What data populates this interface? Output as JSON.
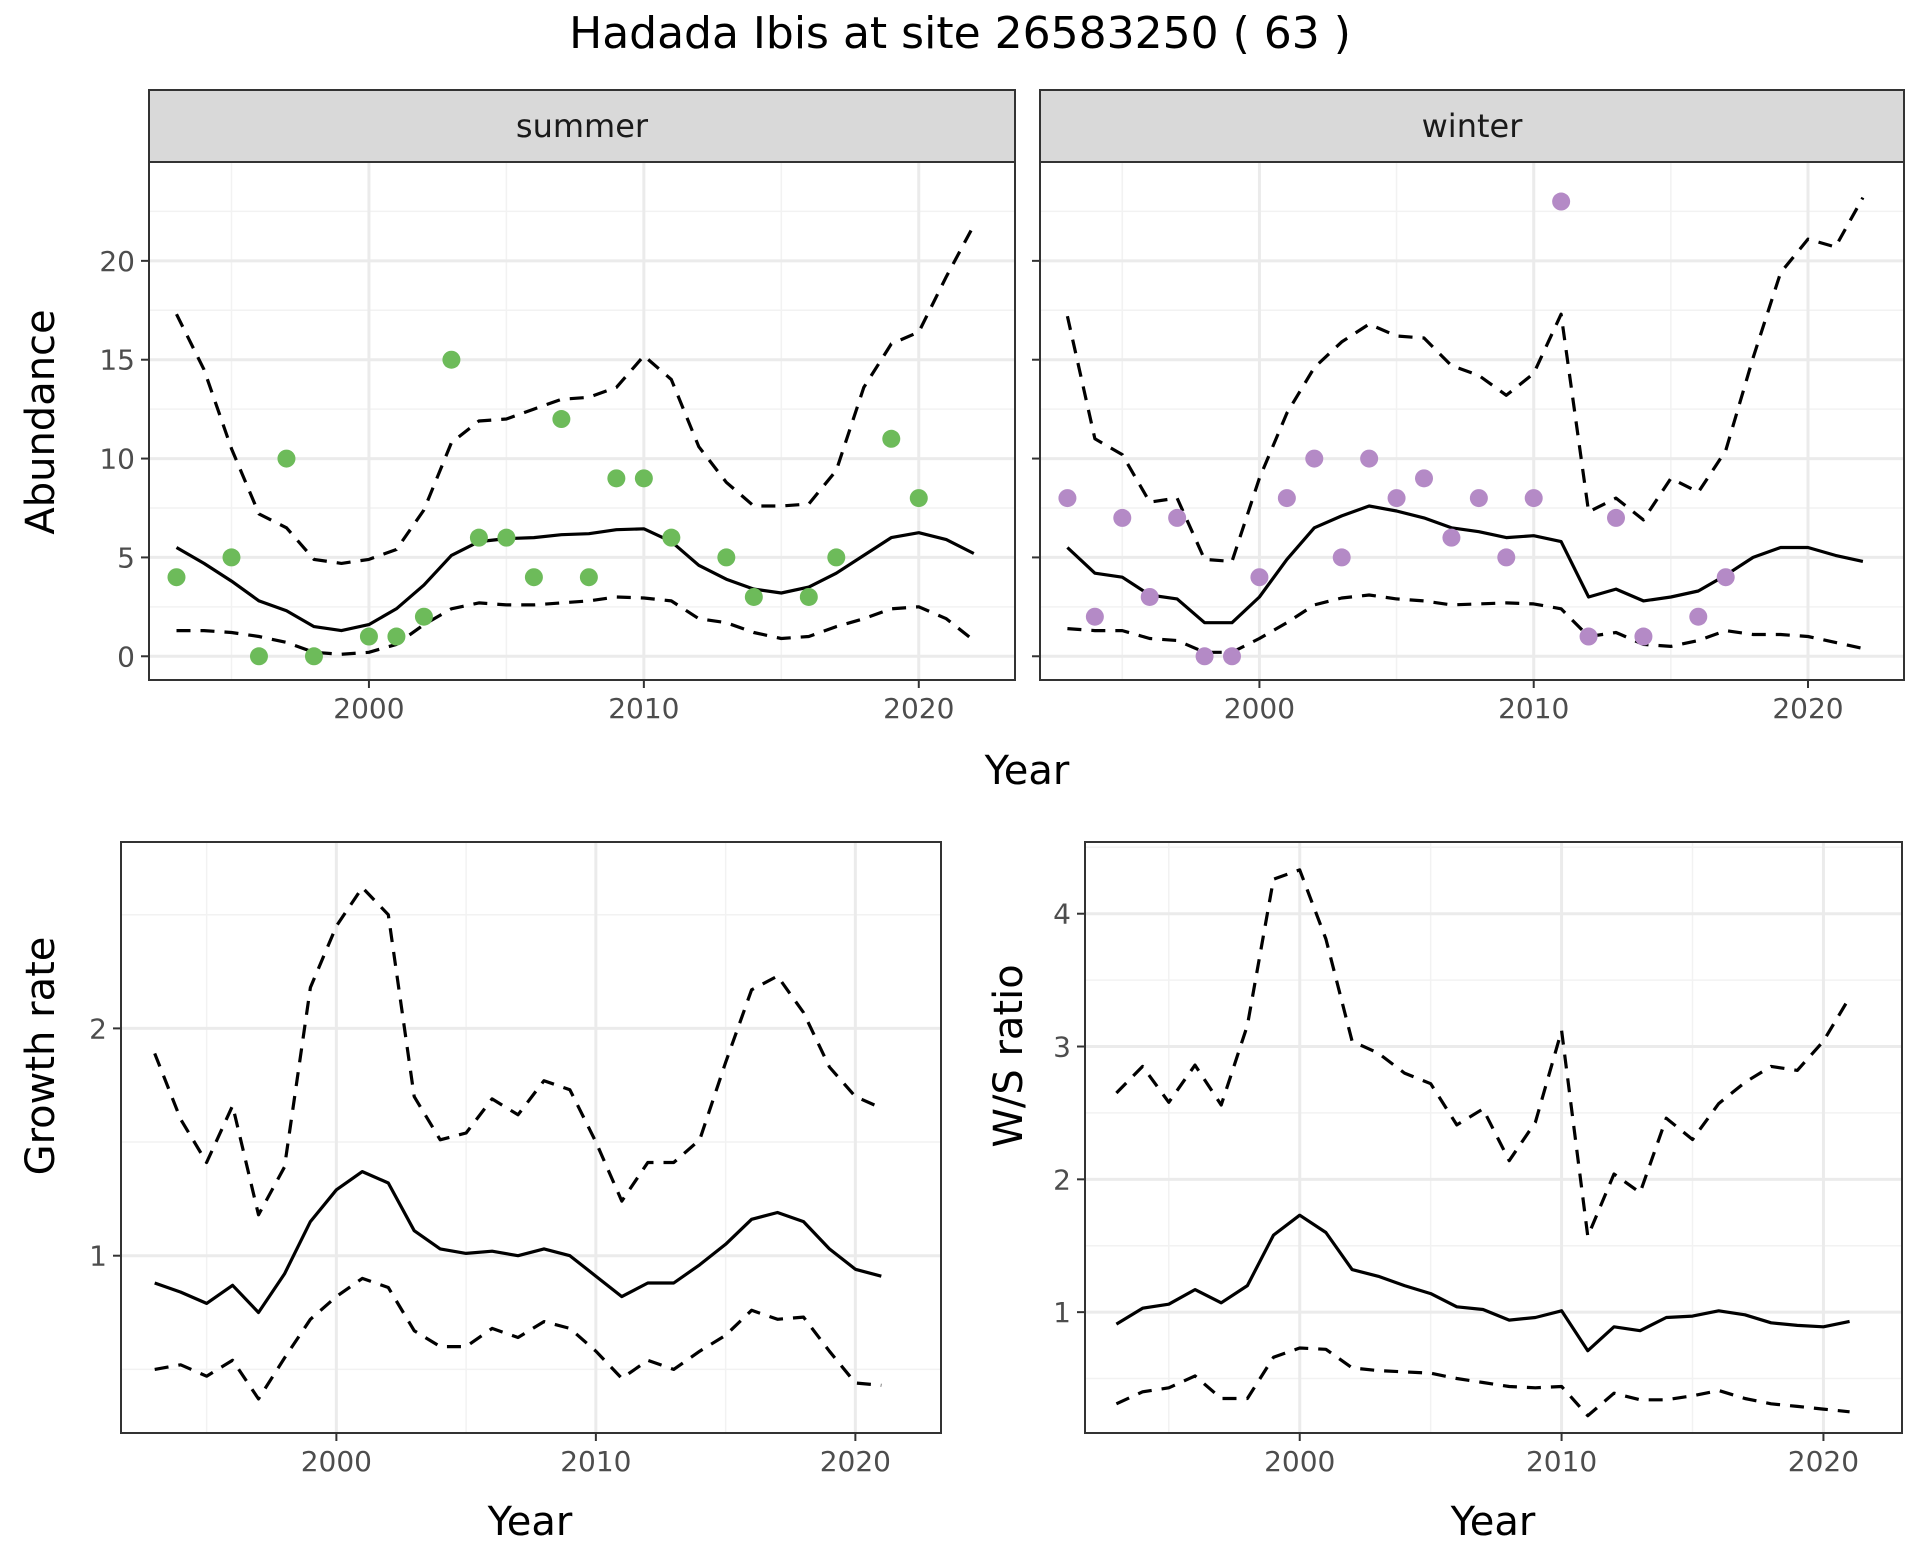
{
  "title": "Hadada Ibis at site 26583250 ( 63 )",
  "colors": {
    "summer_points": "#6dbb5a",
    "winter_points": "#b48ac6",
    "line": "#000000",
    "grid_major": "#ebebeb",
    "strip_fill": "#d9d9d9",
    "panel_border": "#333333"
  },
  "chart_data": [
    {
      "type": "line",
      "panel": "summer",
      "xlabel": "Year",
      "ylabel": "Abundance",
      "xlim": [
        1992,
        2023.5
      ],
      "ylim": [
        -1.2,
        25
      ],
      "xticks": [
        2000,
        2010,
        2020
      ],
      "yticks": [
        0,
        5,
        10,
        15,
        20
      ],
      "points": {
        "x": [
          1993,
          1995,
          1996,
          1997,
          1998,
          2000,
          2001,
          2002,
          2003,
          2004,
          2005,
          2006,
          2007,
          2008,
          2009,
          2010,
          2011,
          2013,
          2014,
          2016,
          2017,
          2019,
          2020
        ],
        "y": [
          4,
          5,
          0,
          10,
          0,
          1,
          1,
          2,
          15,
          6,
          6,
          4,
          12,
          4,
          9,
          9,
          6,
          5,
          3,
          3,
          5,
          11,
          8
        ]
      },
      "estimate": {
        "x": [
          1993,
          1994,
          1995,
          1996,
          1997,
          1998,
          1999,
          2000,
          2001,
          2002,
          2003,
          2004,
          2005,
          2006,
          2007,
          2008,
          2009,
          2010,
          2011,
          2012,
          2013,
          2014,
          2015,
          2016,
          2017,
          2018,
          2019,
          2020,
          2021,
          2022
        ],
        "y": [
          5.5,
          4.7,
          3.8,
          2.8,
          2.3,
          1.5,
          1.3,
          1.6,
          2.4,
          3.6,
          5.1,
          5.8,
          5.95,
          6.0,
          6.15,
          6.2,
          6.4,
          6.45,
          5.8,
          4.6,
          3.9,
          3.4,
          3.2,
          3.5,
          4.2,
          5.1,
          6.0,
          6.25,
          5.9,
          5.2
        ]
      },
      "upper": {
        "x": [
          1993,
          1994,
          1995,
          1996,
          1997,
          1998,
          1999,
          2000,
          2001,
          2002,
          2003,
          2004,
          2005,
          2006,
          2007,
          2008,
          2009,
          2010,
          2011,
          2012,
          2013,
          2014,
          2015,
          2016,
          2017,
          2018,
          2019,
          2020,
          2021,
          2022
        ],
        "y": [
          17.3,
          14.5,
          10.5,
          7.2,
          6.5,
          4.9,
          4.7,
          4.9,
          5.4,
          7.4,
          10.8,
          11.9,
          12.0,
          12.5,
          13.0,
          13.1,
          13.6,
          15.2,
          14.0,
          10.6,
          8.8,
          7.6,
          7.6,
          7.7,
          9.4,
          13.6,
          15.8,
          16.4,
          19.2,
          21.8
        ]
      },
      "lower": {
        "x": [
          1993,
          1994,
          1995,
          1996,
          1997,
          1998,
          1999,
          2000,
          2001,
          2002,
          2003,
          2004,
          2005,
          2006,
          2007,
          2008,
          2009,
          2010,
          2011,
          2012,
          2013,
          2014,
          2015,
          2016,
          2017,
          2018,
          2019,
          2020,
          2021,
          2022
        ],
        "y": [
          1.3,
          1.3,
          1.2,
          1.0,
          0.7,
          0.2,
          0.1,
          0.2,
          0.6,
          1.6,
          2.4,
          2.7,
          2.6,
          2.6,
          2.7,
          2.8,
          3.0,
          2.95,
          2.8,
          1.9,
          1.7,
          1.2,
          0.9,
          1.0,
          1.5,
          1.9,
          2.4,
          2.5,
          1.9,
          0.8
        ]
      }
    },
    {
      "type": "line",
      "panel": "winter",
      "xlabel": "Year",
      "ylabel": "Abundance",
      "xlim": [
        1992,
        2023.5
      ],
      "ylim": [
        -1.2,
        25
      ],
      "xticks": [
        2000,
        2010,
        2020
      ],
      "yticks": [
        0,
        5,
        10,
        15,
        20
      ],
      "points": {
        "x": [
          1993,
          1994,
          1995,
          1996,
          1997,
          1998,
          1999,
          2000,
          2001,
          2002,
          2003,
          2004,
          2005,
          2006,
          2007,
          2008,
          2009,
          2010,
          2011,
          2012,
          2013,
          2014,
          2016,
          2017
        ],
        "y": [
          8,
          2,
          7,
          3,
          7,
          0,
          0,
          4,
          8,
          10,
          5,
          10,
          8,
          9,
          6,
          8,
          5,
          8,
          23,
          1,
          7,
          1,
          2,
          4
        ]
      },
      "estimate": {
        "x": [
          1993,
          1994,
          1995,
          1996,
          1997,
          1998,
          1999,
          2000,
          2001,
          2002,
          2003,
          2004,
          2005,
          2006,
          2007,
          2008,
          2009,
          2010,
          2011,
          2012,
          2013,
          2014,
          2015,
          2016,
          2017,
          2018,
          2019,
          2020,
          2021,
          2022
        ],
        "y": [
          5.5,
          4.2,
          4.0,
          3.1,
          2.9,
          1.7,
          1.7,
          3.0,
          4.9,
          6.5,
          7.1,
          7.6,
          7.35,
          7.0,
          6.5,
          6.3,
          6.0,
          6.1,
          5.8,
          3.0,
          3.4,
          2.8,
          3.0,
          3.3,
          4.1,
          5.0,
          5.5,
          5.5,
          5.1,
          4.8
        ]
      },
      "upper": {
        "x": [
          1993,
          1994,
          1995,
          1996,
          1997,
          1998,
          1999,
          2000,
          2001,
          2002,
          2003,
          2004,
          2005,
          2006,
          2007,
          2008,
          2009,
          2010,
          2011,
          2012,
          2013,
          2014,
          2015,
          2016,
          2017,
          2018,
          2019,
          2020,
          2021,
          2022
        ],
        "y": [
          17.2,
          11.0,
          10.2,
          7.8,
          8.0,
          4.9,
          4.8,
          9.0,
          12.3,
          14.6,
          15.9,
          16.8,
          16.2,
          16.1,
          14.7,
          14.2,
          13.2,
          14.3,
          17.3,
          7.3,
          8.0,
          6.9,
          9.0,
          8.3,
          10.4,
          15.1,
          19.4,
          21.1,
          20.7,
          23.2
        ]
      },
      "lower": {
        "x": [
          1993,
          1994,
          1995,
          1996,
          1997,
          1998,
          1999,
          2000,
          2001,
          2002,
          2003,
          2004,
          2005,
          2006,
          2007,
          2008,
          2009,
          2010,
          2011,
          2012,
          2013,
          2014,
          2015,
          2016,
          2017,
          2018,
          2019,
          2020,
          2021,
          2022
        ],
        "y": [
          1.4,
          1.3,
          1.3,
          0.9,
          0.8,
          0.2,
          0.2,
          0.9,
          1.7,
          2.6,
          2.95,
          3.1,
          2.9,
          2.8,
          2.6,
          2.65,
          2.7,
          2.65,
          2.4,
          1.0,
          1.2,
          0.6,
          0.5,
          0.8,
          1.3,
          1.1,
          1.1,
          1.0,
          0.7,
          0.4
        ]
      }
    },
    {
      "type": "line",
      "panel": "growth",
      "xlabel": "Year",
      "ylabel": "Growth rate",
      "xlim": [
        1991.7,
        2023.3
      ],
      "ylim": [
        0.22,
        2.82
      ],
      "xticks": [
        2000,
        2010,
        2020
      ],
      "yticks": [
        1,
        2
      ],
      "estimate": {
        "x": [
          1993,
          1994,
          1995,
          1996,
          1997,
          1998,
          1999,
          2000,
          2001,
          2002,
          2003,
          2004,
          2005,
          2006,
          2007,
          2008,
          2009,
          2010,
          2011,
          2012,
          2013,
          2014,
          2015,
          2016,
          2017,
          2018,
          2019,
          2020,
          2021
        ],
        "y": [
          0.88,
          0.84,
          0.79,
          0.87,
          0.75,
          0.92,
          1.15,
          1.29,
          1.37,
          1.32,
          1.11,
          1.03,
          1.01,
          1.02,
          1.0,
          1.03,
          1.0,
          0.91,
          0.82,
          0.88,
          0.88,
          0.96,
          1.05,
          1.16,
          1.19,
          1.15,
          1.03,
          0.94,
          0.91
        ]
      },
      "upper": {
        "x": [
          1993,
          1994,
          1995,
          1996,
          1997,
          1998,
          1999,
          2000,
          2001,
          2002,
          2003,
          2004,
          2005,
          2006,
          2007,
          2008,
          2009,
          2010,
          2011,
          2012,
          2013,
          2014,
          2015,
          2016,
          2017,
          2018,
          2019,
          2020,
          2021
        ],
        "y": [
          1.89,
          1.6,
          1.41,
          1.66,
          1.18,
          1.39,
          2.18,
          2.45,
          2.62,
          2.5,
          1.7,
          1.51,
          1.54,
          1.69,
          1.62,
          1.77,
          1.73,
          1.5,
          1.24,
          1.41,
          1.41,
          1.51,
          1.85,
          2.17,
          2.23,
          2.07,
          1.83,
          1.7,
          1.65
        ]
      },
      "lower": {
        "x": [
          1993,
          1994,
          1995,
          1996,
          1997,
          1998,
          1999,
          2000,
          2001,
          2002,
          2003,
          2004,
          2005,
          2006,
          2007,
          2008,
          2009,
          2010,
          2011,
          2012,
          2013,
          2014,
          2015,
          2016,
          2017,
          2018,
          2019,
          2020,
          2021
        ],
        "y": [
          0.5,
          0.52,
          0.47,
          0.54,
          0.37,
          0.55,
          0.72,
          0.82,
          0.9,
          0.86,
          0.67,
          0.6,
          0.6,
          0.68,
          0.64,
          0.71,
          0.68,
          0.58,
          0.46,
          0.54,
          0.5,
          0.58,
          0.65,
          0.76,
          0.72,
          0.73,
          0.58,
          0.44,
          0.43
        ]
      }
    },
    {
      "type": "line",
      "panel": "ws_ratio",
      "xlabel": "Year",
      "ylabel": "W/S ratio",
      "xlim": [
        1991.8,
        2023.0
      ],
      "ylim": [
        0.09,
        4.54
      ],
      "xticks": [
        2000,
        2010,
        2020
      ],
      "yticks": [
        1,
        2,
        3,
        4
      ],
      "estimate": {
        "x": [
          1993,
          1994,
          1995,
          1996,
          1997,
          1998,
          1999,
          2000,
          2001,
          2002,
          2003,
          2004,
          2005,
          2006,
          2007,
          2008,
          2009,
          2010,
          2011,
          2012,
          2013,
          2014,
          2015,
          2016,
          2017,
          2018,
          2019,
          2020,
          2021
        ],
        "y": [
          0.91,
          1.03,
          1.06,
          1.17,
          1.07,
          1.2,
          1.58,
          1.73,
          1.6,
          1.32,
          1.27,
          1.2,
          1.14,
          1.04,
          1.02,
          0.94,
          0.96,
          1.01,
          0.71,
          0.89,
          0.86,
          0.96,
          0.97,
          1.01,
          0.98,
          0.92,
          0.9,
          0.89,
          0.93
        ]
      },
      "upper": {
        "x": [
          1993,
          1994,
          1995,
          1996,
          1997,
          1998,
          1999,
          2000,
          2001,
          2002,
          2003,
          2004,
          2005,
          2006,
          2007,
          2008,
          2009,
          2010,
          2011,
          2012,
          2013,
          2014,
          2015,
          2016,
          2017,
          2018,
          2019,
          2020,
          2021
        ],
        "y": [
          2.65,
          2.85,
          2.58,
          2.86,
          2.56,
          3.16,
          4.26,
          4.33,
          3.81,
          3.04,
          2.95,
          2.8,
          2.72,
          2.41,
          2.53,
          2.14,
          2.43,
          3.12,
          1.57,
          2.04,
          1.9,
          2.46,
          2.3,
          2.57,
          2.73,
          2.85,
          2.82,
          3.04,
          3.37
        ]
      },
      "lower": {
        "x": [
          1993,
          1994,
          1995,
          1996,
          1997,
          1998,
          1999,
          2000,
          2001,
          2002,
          2003,
          2004,
          2005,
          2006,
          2007,
          2008,
          2009,
          2010,
          2011,
          2012,
          2013,
          2014,
          2015,
          2016,
          2017,
          2018,
          2019,
          2020,
          2021
        ],
        "y": [
          0.31,
          0.4,
          0.43,
          0.52,
          0.35,
          0.35,
          0.66,
          0.73,
          0.72,
          0.58,
          0.56,
          0.55,
          0.54,
          0.5,
          0.47,
          0.44,
          0.43,
          0.44,
          0.22,
          0.39,
          0.34,
          0.34,
          0.37,
          0.41,
          0.35,
          0.31,
          0.29,
          0.27,
          0.25
        ]
      }
    }
  ]
}
